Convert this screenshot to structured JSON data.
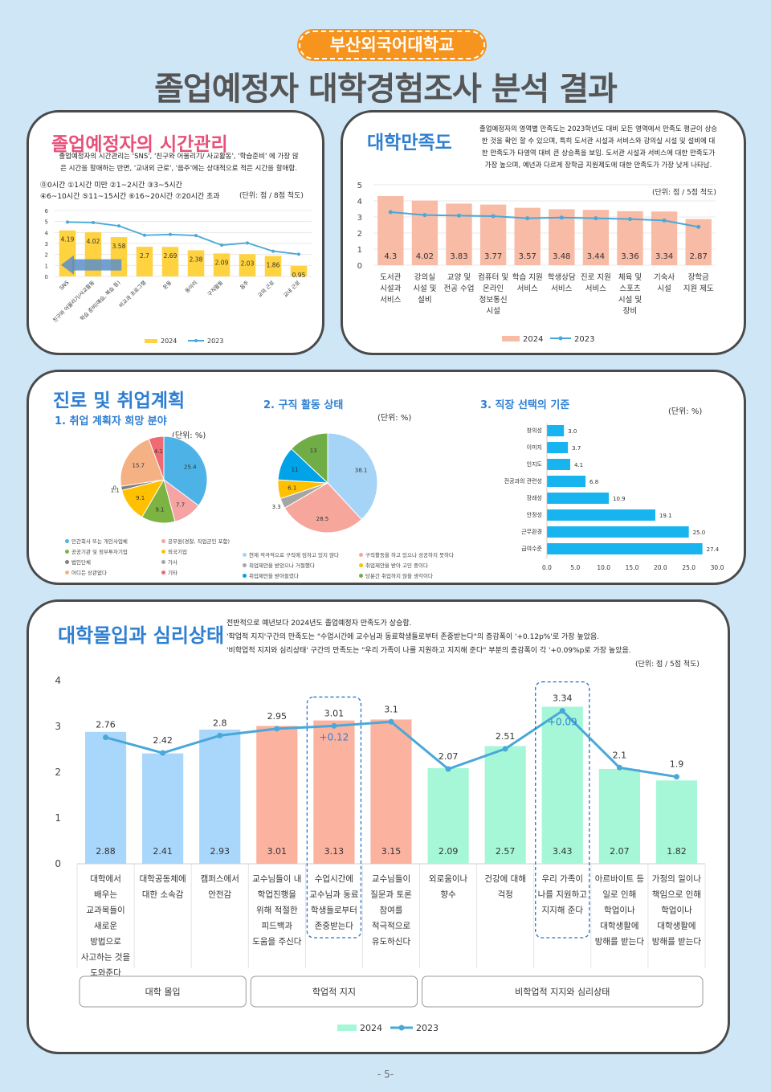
{
  "header": {
    "university": "부산외국어대학교",
    "title": "졸업예정자 대학경험조사 분석 결과"
  },
  "time": {
    "title": "졸업예정자의 시간관리",
    "desc1": "졸업예정자의 시간관리는 'SNS', '친구와 어울리기/ 사교활동', '학습준비' 에 가장 많",
    "desc2": "은 시간을 할애하는 반면, '교내외 근로', '음주'에는 상대적으로 적은 시간을 할애함.",
    "scale1": "⓪0시간 ①1시간 미만 ②1~2시간 ③3~5시간",
    "scale2": "④6~10시간 ⑤11~15시간 ⑥16~20시간 ⑦20시간 초과",
    "unit": "(단위: 점 / 8점 척도)",
    "legend_2024": "2024",
    "legend_2023": "2023"
  },
  "satisfaction": {
    "title": "대학만족도",
    "desc1": "졸업예정자의 영역별 만족도는 2023학년도 대비 모든 영역에서 만족도 평균이 상승",
    "desc2": "한 것을 확인 할 수 있으며, 특히 도서관 시설과 서비스와 강의실 시설 및 설비에 대",
    "desc3": "한 만족도가 타영역 대비 큰 상승폭을 보임. 도서관 시설과 서비스에 대한 만족도가",
    "desc4": "가장 높으며, 예년과 다르게 장학금 지원제도에 대한 만족도가 가장 낮게 나타남.",
    "unit": "(단위: 점 / 5점 척도)",
    "legend_2024": "2024",
    "legend_2023": "2023"
  },
  "career": {
    "title": "진로 및 취업계획",
    "sub1": "1. 취업 계획자 희망 분야",
    "sub2": "2. 구직 활동 상태",
    "sub3": "3. 직장 선택의 기준",
    "unit_pct": "(단위: %)",
    "legend1": [
      "민간회사 또는 개인사업체",
      "공무원(경찰, 직업군인 포함)",
      "공공기관 및 정부투자기업",
      "외국기업",
      "법인단체",
      "가사",
      "어디든 상관없다",
      "기타"
    ],
    "legend2": [
      "현재 적극적으로 구직에 임하고 있지 않다",
      "구직활동을 하고 있으나 성공하지 못하다",
      "취업제안을 받았으나 거절했다",
      "취업제안을 받아 고민 중이다",
      "취업제안을 받아들였다",
      "당분간 취업하지 않을 생각이다"
    ]
  },
  "immersion": {
    "title": "대학몰입과 심리상태",
    "desc1": "전반적으로 예년보다 2024년도 졸업예정자 만족도가 상승함.",
    "desc2": "'학업적 지지'구간의 만족도는 \"수업시간에 교수님과 동료학생들로부터 존중받는다\"의 증감폭이 '+0.12p%'로 가장 높았음.",
    "desc3": "'비학업적 지지와 심리상태' 구간의 만족도는 \"우리 가족이 나를 지원하고 지지해 준다\" 부분의 증감폭이 각 '+0.09%p로 가장 높았음.",
    "unit": "(단위: 점 / 5점 척도)",
    "delta1": "+0.12",
    "delta2": "+0.09",
    "groups": [
      "대학 몰입",
      "학업적 지지",
      "비학업적 지지와 심리상태"
    ],
    "legend_2024": "2024",
    "legend_2023": "2023"
  },
  "footer": {
    "page": "- 5-"
  },
  "chart_data": [
    {
      "type": "bar",
      "id": "time",
      "categories": [
        "SNS",
        "친구와 어울리기/사교활동",
        "학습 준비(예습, 복습 등)",
        "비교과 프로그램",
        "운동",
        "동아리",
        "구직활동",
        "음주",
        "교외 근로",
        "교내 근로"
      ],
      "series": [
        {
          "name": "2024",
          "values": [
            4.19,
            4.02,
            3.58,
            2.7,
            2.69,
            2.38,
            2.09,
            2.03,
            1.86,
            0.95
          ]
        },
        {
          "name": "2023",
          "values": [
            4.95,
            4.9,
            4.6,
            3.75,
            3.82,
            3.72,
            2.85,
            3.05,
            2.3,
            2.02
          ]
        }
      ],
      "ylim": [
        0,
        6
      ],
      "yticks": [
        0,
        1,
        2,
        3,
        4,
        5,
        6
      ]
    },
    {
      "type": "bar",
      "id": "satisfaction",
      "categories": [
        "도서관 시설과 서비스",
        "강의실 시설 및 설비",
        "교양 및 전공 수업",
        "컴퓨터 및 온라인 정보통신 시설",
        "학습 지원 서비스",
        "학생상담 서비스",
        "진로 지원 서비스",
        "체육 및 스포츠 시설 및 장비",
        "기숙사 시설",
        "장학금 지원 제도"
      ],
      "series": [
        {
          "name": "2024",
          "values": [
            4.3,
            4.02,
            3.83,
            3.77,
            3.57,
            3.48,
            3.44,
            3.36,
            3.34,
            2.87
          ]
        },
        {
          "name": "2023",
          "values": [
            3.3,
            3.12,
            3.08,
            3.05,
            2.92,
            2.96,
            2.92,
            2.87,
            2.78,
            2.38
          ]
        }
      ],
      "ylim": [
        0,
        5
      ],
      "yticks": [
        0,
        1,
        2,
        3,
        4,
        5
      ]
    },
    {
      "type": "pie",
      "id": "desired-field",
      "labels": [
        "민간회사 또는 개인사업체",
        "공무원(경찰, 직업군인 포함)",
        "공공기관 및 정부투자기업",
        "외국기업",
        "법인단체",
        "가사",
        "어디든 상관없다",
        "기타"
      ],
      "values": [
        25.4,
        7.7,
        9.1,
        9.1,
        1.1,
        0,
        15.7,
        4.1
      ],
      "colors": [
        "#4db3e6",
        "#f5a3a3",
        "#7cb342",
        "#ffc000",
        "#7f7f7f",
        "#a5a5a5",
        "#f4b183",
        "#ef6b73"
      ]
    },
    {
      "type": "pie",
      "id": "job-status",
      "labels": [
        "현재 적극적으로 구직에 임하고 있지 않다",
        "구직활동을 하고 있으나 성공하지 못하다",
        "취업제안을 받았으나 거절했다",
        "취업제안을 받아 고민 중이다",
        "취업제안을 받아들였다",
        "당분간 취업하지 않을 생각이다"
      ],
      "values": [
        38.1,
        28.5,
        3.3,
        6.1,
        11,
        13
      ],
      "colors": [
        "#a6d4f7",
        "#f6a69b",
        "#a5a5a5",
        "#ffc000",
        "#00a2e8",
        "#70ad47"
      ]
    },
    {
      "type": "bar",
      "id": "job-criteria",
      "orientation": "horizontal",
      "categories": [
        "창의성",
        "이미지",
        "인지도",
        "전공과의 관련성",
        "장래성",
        "안정성",
        "근무환경",
        "급여수준"
      ],
      "values": [
        3.0,
        3.7,
        4.1,
        6.8,
        10.9,
        19.1,
        25.0,
        27.4
      ],
      "xlim": [
        0,
        30
      ],
      "xticks": [
        "0.0",
        "5.0",
        "10.0",
        "15.0",
        "20.0",
        "25.0",
        "30.0"
      ]
    },
    {
      "type": "bar",
      "id": "immersion",
      "categories": [
        "대학에서 배우는 교과목들이 새로운 방법으로 사고하는 것을 도와준다",
        "대학공동체에 대한 소속감",
        "캠퍼스에서 안전감",
        "교수님들이 내 학업진행을 위해 적절한 피드백과 도움을 주신다",
        "수업시간에 교수님과 동료학생들로부터 존중받는다",
        "교수님들이 질문과 토론 참여를 적극적으로 유도하신다",
        "외로움이나 향수",
        "건강에 대해 걱정",
        "우리 가족이 나를 지원하고 지지해 준다",
        "아르바이트 등 일로 인해 학업이나 대학생활에 방해를 받는다",
        "가정의 일이나 책임으로 인해 학업이나 대학생활에 방해를 받는다"
      ],
      "series": [
        {
          "name": "2024",
          "values": [
            2.88,
            2.41,
            2.93,
            3.01,
            3.13,
            3.15,
            2.09,
            2.57,
            3.43,
            2.07,
            1.82
          ]
        },
        {
          "name": "2023",
          "values": [
            2.76,
            2.42,
            2.8,
            2.95,
            3.01,
            3.1,
            2.07,
            2.51,
            3.34,
            2.1,
            1.9
          ]
        }
      ],
      "ylim": [
        0,
        4
      ],
      "yticks": [
        0,
        1,
        2,
        3,
        4
      ]
    }
  ]
}
